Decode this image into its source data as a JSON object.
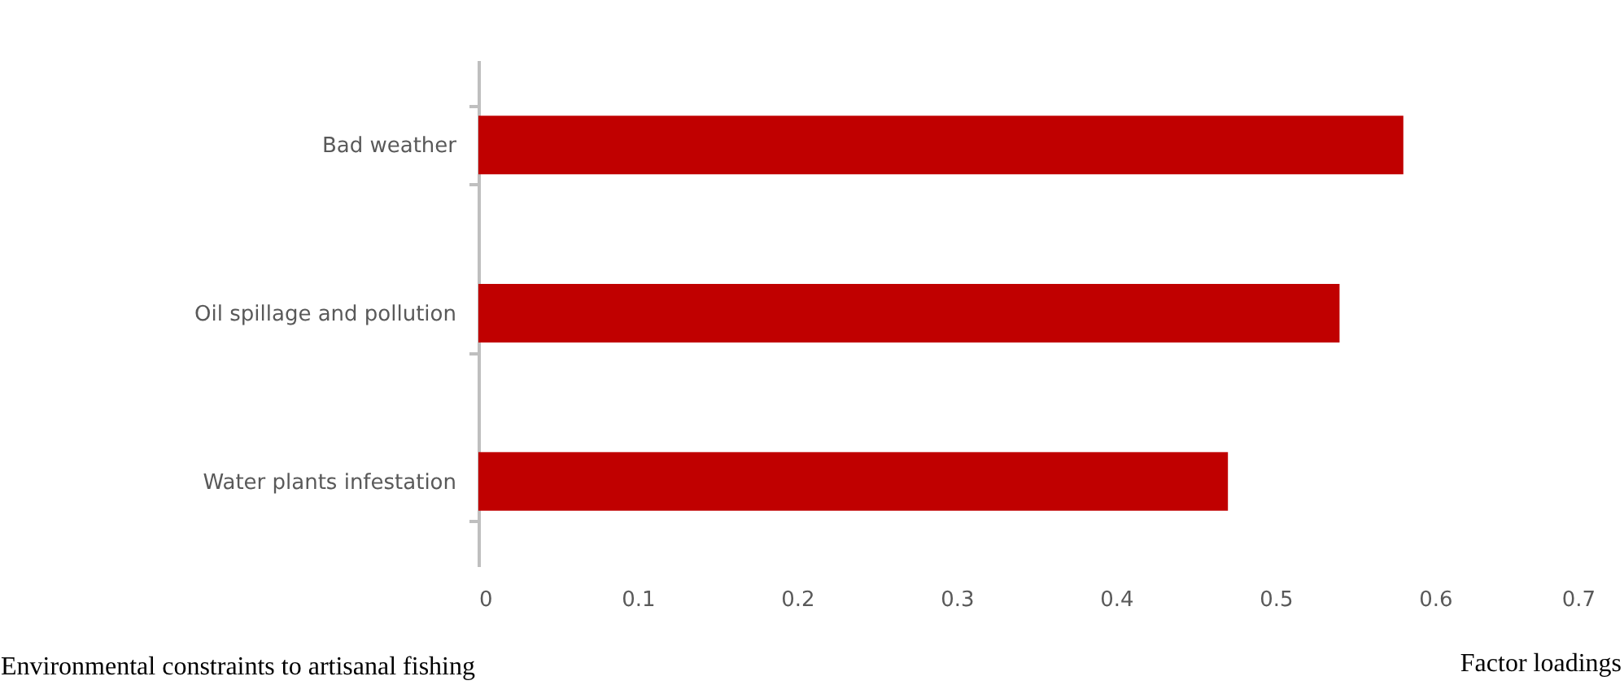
{
  "chart_data": {
    "type": "bar",
    "orientation": "horizontal",
    "xlabel": "Factor loadings",
    "ylabel": "Environmental constraints to artisanal fishing",
    "categories": [
      "Bad weather",
      "Oil spillage and pollution",
      "Water plants infestation"
    ],
    "values": [
      0.58,
      0.54,
      0.47
    ],
    "color": "#c00000",
    "xlim": [
      0,
      0.7
    ],
    "xticks": [
      0,
      0.1,
      0.2,
      0.3,
      0.4,
      0.5,
      0.6,
      0.7
    ],
    "grid": false
  }
}
